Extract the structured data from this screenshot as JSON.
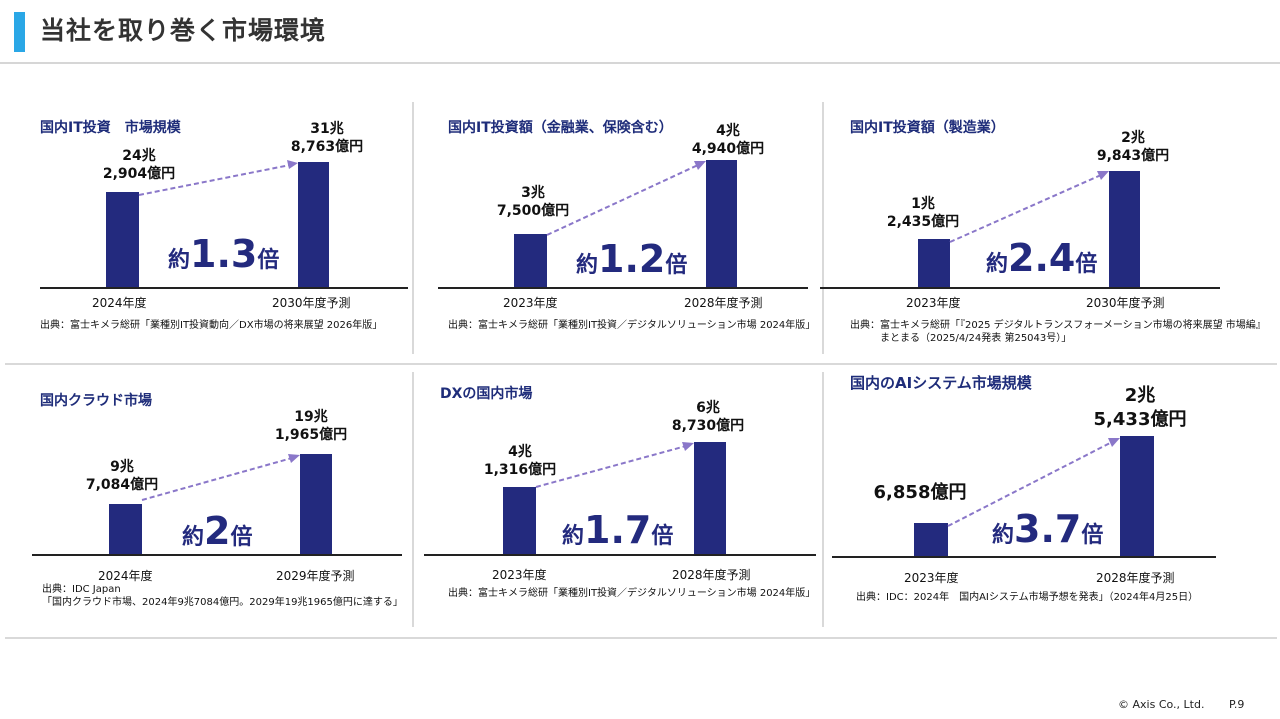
{
  "page_title": "当社を取り巻く市場環境",
  "accent_color": "#2aa7e6",
  "bar_color": "#232a7e",
  "title_color": "#1f2d7a",
  "panels": [
    {
      "title": "国内IT投資　市場規模",
      "left_value": [
        "24兆",
        "2,904億円"
      ],
      "right_value": [
        "31兆",
        "8,763億円"
      ],
      "left_label": "2024年度",
      "right_label": "2030年度予測",
      "multiplier_prefix": "約",
      "multiplier": "1.3",
      "multiplier_suffix": "倍",
      "source": [
        "出典：富士キメラ総研「業種別IT投資動向／DX市場の将来展望 2026年版」"
      ]
    },
    {
      "title": "国内IT投資額（金融業、保険含む）",
      "left_value": [
        "3兆",
        "7,500億円"
      ],
      "right_value": [
        "4兆",
        "4,940億円"
      ],
      "left_label": "2023年度",
      "right_label": "2028年度予測",
      "multiplier_prefix": "約",
      "multiplier": "1.2",
      "multiplier_suffix": "倍",
      "source": [
        "出典：富士キメラ総研「業種別IT投資／デジタルソリューション市場 2024年版」"
      ]
    },
    {
      "title": "国内IT投資額（製造業）",
      "left_value": [
        "1兆",
        "2,435億円"
      ],
      "right_value": [
        "2兆",
        "9,843億円"
      ],
      "left_label": "2023年度",
      "right_label": "2030年度予測",
      "multiplier_prefix": "約",
      "multiplier": "2.4",
      "multiplier_suffix": "倍",
      "source": [
        "出典：富士キメラ総研「『2025 デジタルトランスフォーメーション市場の将来展望 市場編』",
        "　　　まとまる（2025/4/24発表 第25043号）」"
      ]
    },
    {
      "title": "国内クラウド市場",
      "left_value": [
        "9兆",
        "7,084億円"
      ],
      "right_value": [
        "19兆",
        "1,965億円"
      ],
      "left_label": "2024年度",
      "right_label": "2029年度予測",
      "multiplier_prefix": "約",
      "multiplier": "2",
      "multiplier_suffix": "倍",
      "source": [
        "出典：IDC Japan",
        "「国内クラウド市場、2024年9兆7084億円。2029年19兆1965億円に達する」"
      ]
    },
    {
      "title": "DXの国内市場",
      "left_value": [
        "4兆",
        "1,316億円"
      ],
      "right_value": [
        "6兆",
        "8,730億円"
      ],
      "left_label": "2023年度",
      "right_label": "2028年度予測",
      "multiplier_prefix": "約",
      "multiplier": "1.7",
      "multiplier_suffix": "倍",
      "source": [
        "出典：富士キメラ総研「業種別IT投資／デジタルソリューション市場 2024年版」"
      ]
    },
    {
      "title": "国内のAIシステム市場規模",
      "left_value": [
        "6,858億円"
      ],
      "right_value": [
        "2兆",
        "5,433億円"
      ],
      "left_label": "2023年度",
      "right_label": "2028年度予測",
      "multiplier_prefix": "約",
      "multiplier": "3.7",
      "multiplier_suffix": "倍",
      "source": [
        "出典：IDC：2024年　国内AIシステム市場予想を発表」（2024年4月25日）"
      ]
    }
  ],
  "footer": {
    "copyright": "© Axis Co., Ltd.",
    "page": "P.9"
  }
}
